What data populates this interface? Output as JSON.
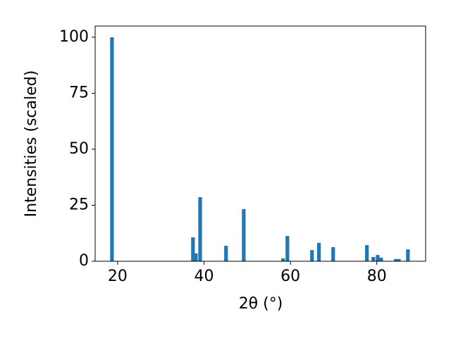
{
  "chart_data": {
    "type": "bar",
    "x": [
      18.7,
      37.45,
      38.1,
      39.1,
      45.1,
      49.2,
      58.3,
      59.3,
      65.0,
      66.6,
      69.9,
      77.7,
      79.2,
      80.2,
      81.0,
      84.4,
      85.1,
      87.2
    ],
    "values": [
      100,
      10.7,
      3.5,
      28.6,
      6.9,
      23.3,
      1.3,
      11.3,
      5.0,
      8.2,
      6.3,
      7.2,
      1.9,
      2.8,
      1.6,
      1.0,
      1.0,
      5.3
    ],
    "color": "#1f77b4",
    "xlabel": "2θ (°)",
    "ylabel": "Intensities (scaled)",
    "xlim": [
      14.8,
      91.3
    ],
    "ylim": [
      0,
      105
    ],
    "xticks": [
      20,
      40,
      60,
      80
    ],
    "yticks": [
      0,
      25,
      50,
      75,
      100
    ]
  }
}
